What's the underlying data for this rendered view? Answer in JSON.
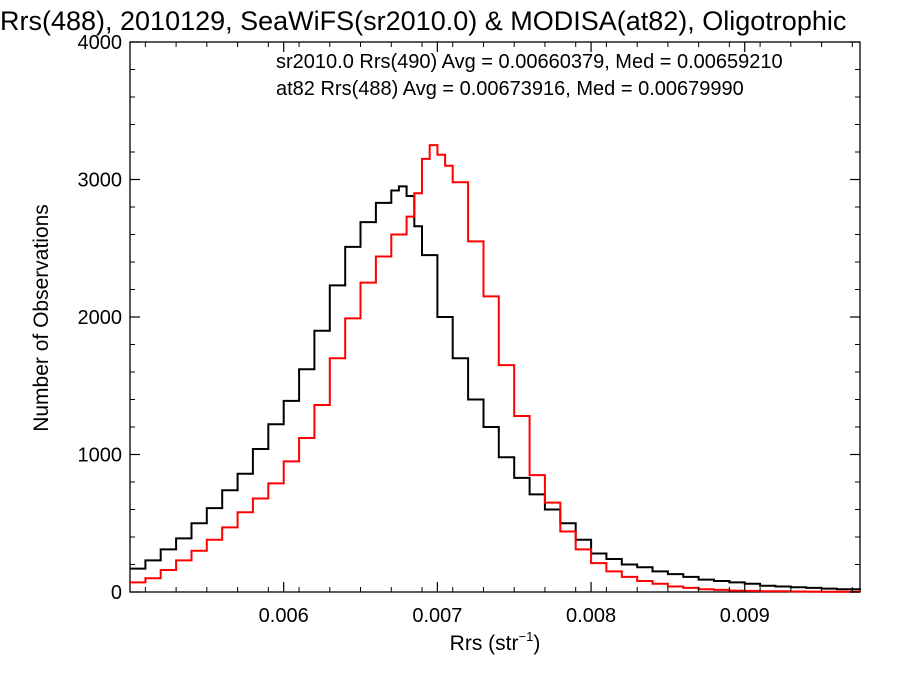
{
  "chart_data": {
    "type": "line",
    "title": "Rrs(488), 2010129, SeaWiFS(sr2010.0) & MODISA(at82), Oligotrophic",
    "xlabel_main": "Rrs (str",
    "xlabel_sup": "−1",
    "xlabel_close": ")",
    "ylabel": "Number of Observations",
    "xlim": [
      0.005,
      0.00975
    ],
    "ylim": [
      0,
      4000
    ],
    "x_ticks": [
      0.006,
      0.007,
      0.008,
      0.009
    ],
    "x_tick_labels": [
      "0.006",
      "0.007",
      "0.008",
      "0.009"
    ],
    "y_ticks": [
      0,
      1000,
      2000,
      3000,
      4000
    ],
    "y_tick_labels": [
      "0",
      "1000",
      "2000",
      "3000",
      "4000"
    ],
    "grid": false,
    "legend_position": "top-right",
    "series": [
      {
        "name": "sr2010.0 Rrs(490) Avg = 0.00660379, Med = 0.00659210",
        "color": "#000000",
        "step": true,
        "x": [
          0.005,
          0.0051,
          0.0052,
          0.0053,
          0.0054,
          0.0055,
          0.0056,
          0.0057,
          0.0058,
          0.0059,
          0.006,
          0.0061,
          0.0062,
          0.0063,
          0.0064,
          0.0065,
          0.0066,
          0.0067,
          0.00675,
          0.0068,
          0.00685,
          0.0069,
          0.007,
          0.0071,
          0.0072,
          0.0073,
          0.0074,
          0.0075,
          0.0076,
          0.0077,
          0.0078,
          0.0079,
          0.008,
          0.0081,
          0.0082,
          0.0083,
          0.0084,
          0.0085,
          0.0086,
          0.0087,
          0.0088,
          0.0089,
          0.009,
          0.0091,
          0.0092,
          0.0093,
          0.0094,
          0.0095,
          0.0096,
          0.00975
        ],
        "values": [
          170,
          230,
          310,
          390,
          500,
          610,
          740,
          860,
          1040,
          1220,
          1390,
          1620,
          1900,
          2230,
          2510,
          2690,
          2830,
          2920,
          2950,
          2880,
          2660,
          2450,
          2000,
          1700,
          1400,
          1200,
          980,
          830,
          710,
          600,
          500,
          380,
          280,
          240,
          200,
          180,
          150,
          130,
          110,
          90,
          80,
          70,
          60,
          45,
          40,
          35,
          30,
          25,
          20,
          15
        ]
      },
      {
        "name": "at82 Rrs(488) Avg = 0.00673916, Med = 0.00679990",
        "color": "#ff0000",
        "step": true,
        "x": [
          0.005,
          0.0051,
          0.0052,
          0.0053,
          0.0054,
          0.0055,
          0.0056,
          0.0057,
          0.0058,
          0.0059,
          0.006,
          0.0061,
          0.0062,
          0.0063,
          0.0064,
          0.0065,
          0.0066,
          0.0067,
          0.0068,
          0.00685,
          0.0069,
          0.00695,
          0.007,
          0.00705,
          0.0071,
          0.0072,
          0.0073,
          0.0074,
          0.0075,
          0.0076,
          0.0077,
          0.0078,
          0.0079,
          0.008,
          0.0081,
          0.0082,
          0.0083,
          0.0084,
          0.0085,
          0.0086,
          0.0087,
          0.0088,
          0.0089,
          0.009,
          0.0091,
          0.0092,
          0.0093,
          0.0094,
          0.0095,
          0.00975
        ],
        "values": [
          70,
          100,
          160,
          230,
          300,
          380,
          470,
          580,
          680,
          790,
          950,
          1120,
          1360,
          1700,
          1990,
          2250,
          2440,
          2600,
          2730,
          2900,
          3150,
          3250,
          3180,
          3100,
          2980,
          2550,
          2150,
          1650,
          1280,
          850,
          650,
          440,
          310,
          210,
          150,
          110,
          80,
          60,
          40,
          30,
          20,
          15,
          10,
          8,
          6,
          5,
          4,
          3,
          2,
          1
        ]
      }
    ]
  }
}
